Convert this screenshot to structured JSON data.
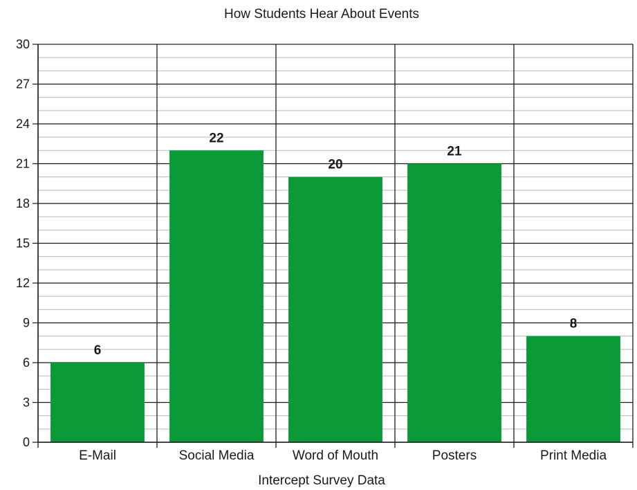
{
  "chart_data": {
    "type": "bar",
    "title": "How Students Hear About Events",
    "xlabel": "Intercept Survey Data",
    "ylabel": "",
    "categories": [
      "E-Mail",
      "Social Media",
      "Word of Mouth",
      "Posters",
      "Print Media"
    ],
    "values": [
      6,
      22,
      20,
      21,
      8
    ],
    "ylim": [
      0,
      30
    ],
    "yticks": [
      0,
      3,
      6,
      9,
      12,
      15,
      18,
      21,
      24,
      27,
      30
    ],
    "grid": true,
    "legend": "none",
    "bar_color": "#0a9a37"
  }
}
